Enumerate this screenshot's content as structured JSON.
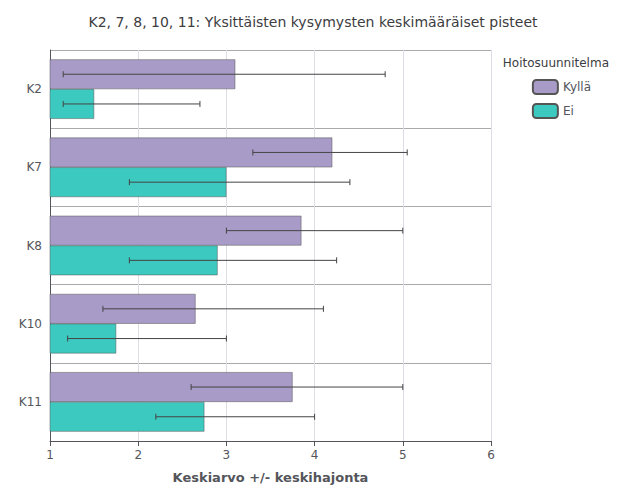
{
  "chart_data": {
    "type": "bar",
    "orientation": "horizontal",
    "title": "K2, 7, 8, 10, 11: Yksittäisten kysymysten keskimääräiset pisteet",
    "xlabel": "Keskiarvo +/- keskihajonta",
    "legend_title": "Hoitosuunnitelma",
    "legend": "right",
    "grid": true,
    "categories": [
      "K2",
      "K7",
      "K8",
      "K10",
      "K11"
    ],
    "series": [
      {
        "name": "Kyllä",
        "color": "#a89bc8",
        "values": [
          3.1,
          4.2,
          3.85,
          2.65,
          3.75
        ],
        "error_minus": [
          1.95,
          0.9,
          0.85,
          1.05,
          1.15
        ],
        "error_plus": [
          1.7,
          0.85,
          1.15,
          1.45,
          1.25
        ]
      },
      {
        "name": "Ei",
        "color": "#3cc9c0",
        "values": [
          1.5,
          3.0,
          2.9,
          1.75,
          2.75
        ],
        "error_minus": [
          0.35,
          1.1,
          1.0,
          0.55,
          0.55
        ],
        "error_plus": [
          1.2,
          1.4,
          1.35,
          1.25,
          1.25
        ]
      }
    ],
    "xlim": [
      1,
      6
    ],
    "xticks": [
      1,
      2,
      3,
      4,
      5,
      6
    ]
  }
}
